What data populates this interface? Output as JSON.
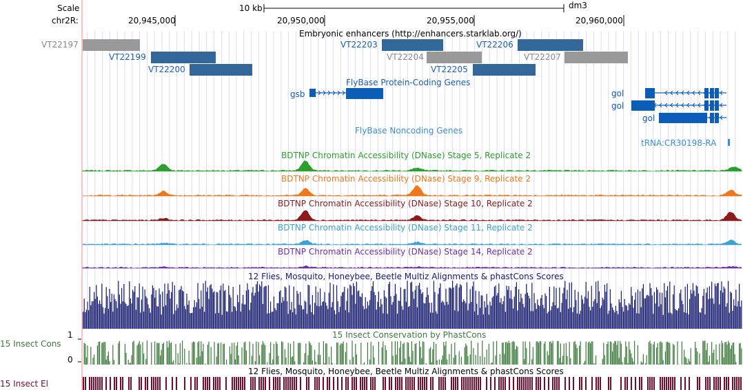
{
  "ruler": {
    "scale_label": "Scale",
    "chrom_label": "chr2R:",
    "scale_bar_label": "10 kb",
    "assembly": "dm3",
    "ticks": [
      "20,945,000",
      "20,950,000",
      "20,955,000",
      "20,960,000"
    ]
  },
  "enhancers": {
    "title": "Embryonic enhancers (http://enhancers.starklab.org/)",
    "items": [
      {
        "id": "VT22197",
        "color": "gray"
      },
      {
        "id": "VT22199",
        "color": "blue"
      },
      {
        "id": "VT22200",
        "color": "blue"
      },
      {
        "id": "VT22203",
        "color": "blue"
      },
      {
        "id": "VT22204",
        "color": "gray"
      },
      {
        "id": "VT22205",
        "color": "blue"
      },
      {
        "id": "VT22206",
        "color": "blue"
      },
      {
        "id": "VT22207",
        "color": "gray"
      }
    ]
  },
  "genes": {
    "protein_title": "FlyBase Protein-Coding Genes",
    "gsb": "gsb",
    "gol": [
      "gol",
      "gol",
      "gol"
    ],
    "noncoding_title": "FlyBase Noncoding Genes",
    "trna": "tRNA:CR30198-RA"
  },
  "dnase_tracks": [
    {
      "title": "BDTNP Chromatin Accessibility (DNase) Stage 5, Replicate 2",
      "color": "#2ca02c"
    },
    {
      "title": "BDTNP Chromatin Accessibility (DNase) Stage 9, Replicate 2",
      "color": "#f07818"
    },
    {
      "title": "BDTNP Chromatin Accessibility (DNase) Stage 10, Replicate 2",
      "color": "#8b1a1a"
    },
    {
      "title": "BDTNP Chromatin Accessibility (DNase) Stage 11, Replicate 2",
      "color": "#3ba3d0"
    },
    {
      "title": "BDTNP Chromatin Accessibility (DNase) Stage 14, Replicate 2",
      "color": "#7030a0"
    }
  ],
  "conservation": {
    "multiz_title": "12 Flies, Mosquito, Honeybee, Beetle Multiz Alignments & phastCons Scores",
    "phast_title": "15 Insect Conservation by PhastCons",
    "phast_side_label": "15 Insect Cons",
    "axis_max": "1",
    "axis_min": "0",
    "el_title": "12 Flies, Mosquito, Honeybee, Beetle Multiz Alignments & phastCons Scores",
    "el_side_label": "15 Insect El"
  },
  "colors": {
    "enhancer_blue": "#336699",
    "enhancer_gray": "#999999",
    "gene_blue": "#0c5db8",
    "label_blue": "#1a5fb4",
    "noncoding_blue": "#3a8fd6",
    "multiz": "#14196e",
    "phastcons": "#3c7a3c",
    "elements": "#7a0a2a",
    "guide": "#dcdcf0",
    "left_border": "#f4b0b0"
  }
}
